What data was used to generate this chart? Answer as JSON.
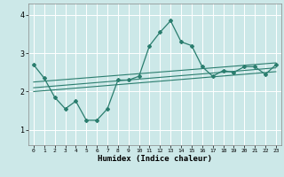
{
  "xlabel": "Humidex (Indice chaleur)",
  "bg_color": "#cce8e8",
  "line_color": "#2a7d6e",
  "grid_color": "#ffffff",
  "xlim": [
    -0.5,
    23.5
  ],
  "ylim": [
    0.6,
    4.3
  ],
  "xticks": [
    0,
    1,
    2,
    3,
    4,
    5,
    6,
    7,
    8,
    9,
    10,
    11,
    12,
    13,
    14,
    15,
    16,
    17,
    18,
    19,
    20,
    21,
    22,
    23
  ],
  "yticks": [
    1,
    2,
    3,
    4
  ],
  "main_line_x": [
    0,
    1,
    2,
    3,
    4,
    5,
    6,
    7,
    8,
    9,
    10,
    11,
    12,
    13,
    14,
    15,
    16,
    17,
    18,
    19,
    20,
    21,
    22,
    23
  ],
  "main_line_y": [
    2.7,
    2.35,
    1.85,
    1.55,
    1.75,
    1.25,
    1.25,
    1.55,
    2.3,
    2.3,
    2.4,
    3.2,
    3.55,
    3.85,
    3.3,
    3.2,
    2.65,
    2.4,
    2.55,
    2.5,
    2.65,
    2.65,
    2.45,
    2.7
  ],
  "reg_line1_x": [
    0,
    23
  ],
  "reg_line1_y": [
    2.25,
    2.75
  ],
  "reg_line2_x": [
    0,
    23
  ],
  "reg_line2_y": [
    2.1,
    2.62
  ],
  "reg_line3_x": [
    0,
    23
  ],
  "reg_line3_y": [
    2.0,
    2.52
  ]
}
